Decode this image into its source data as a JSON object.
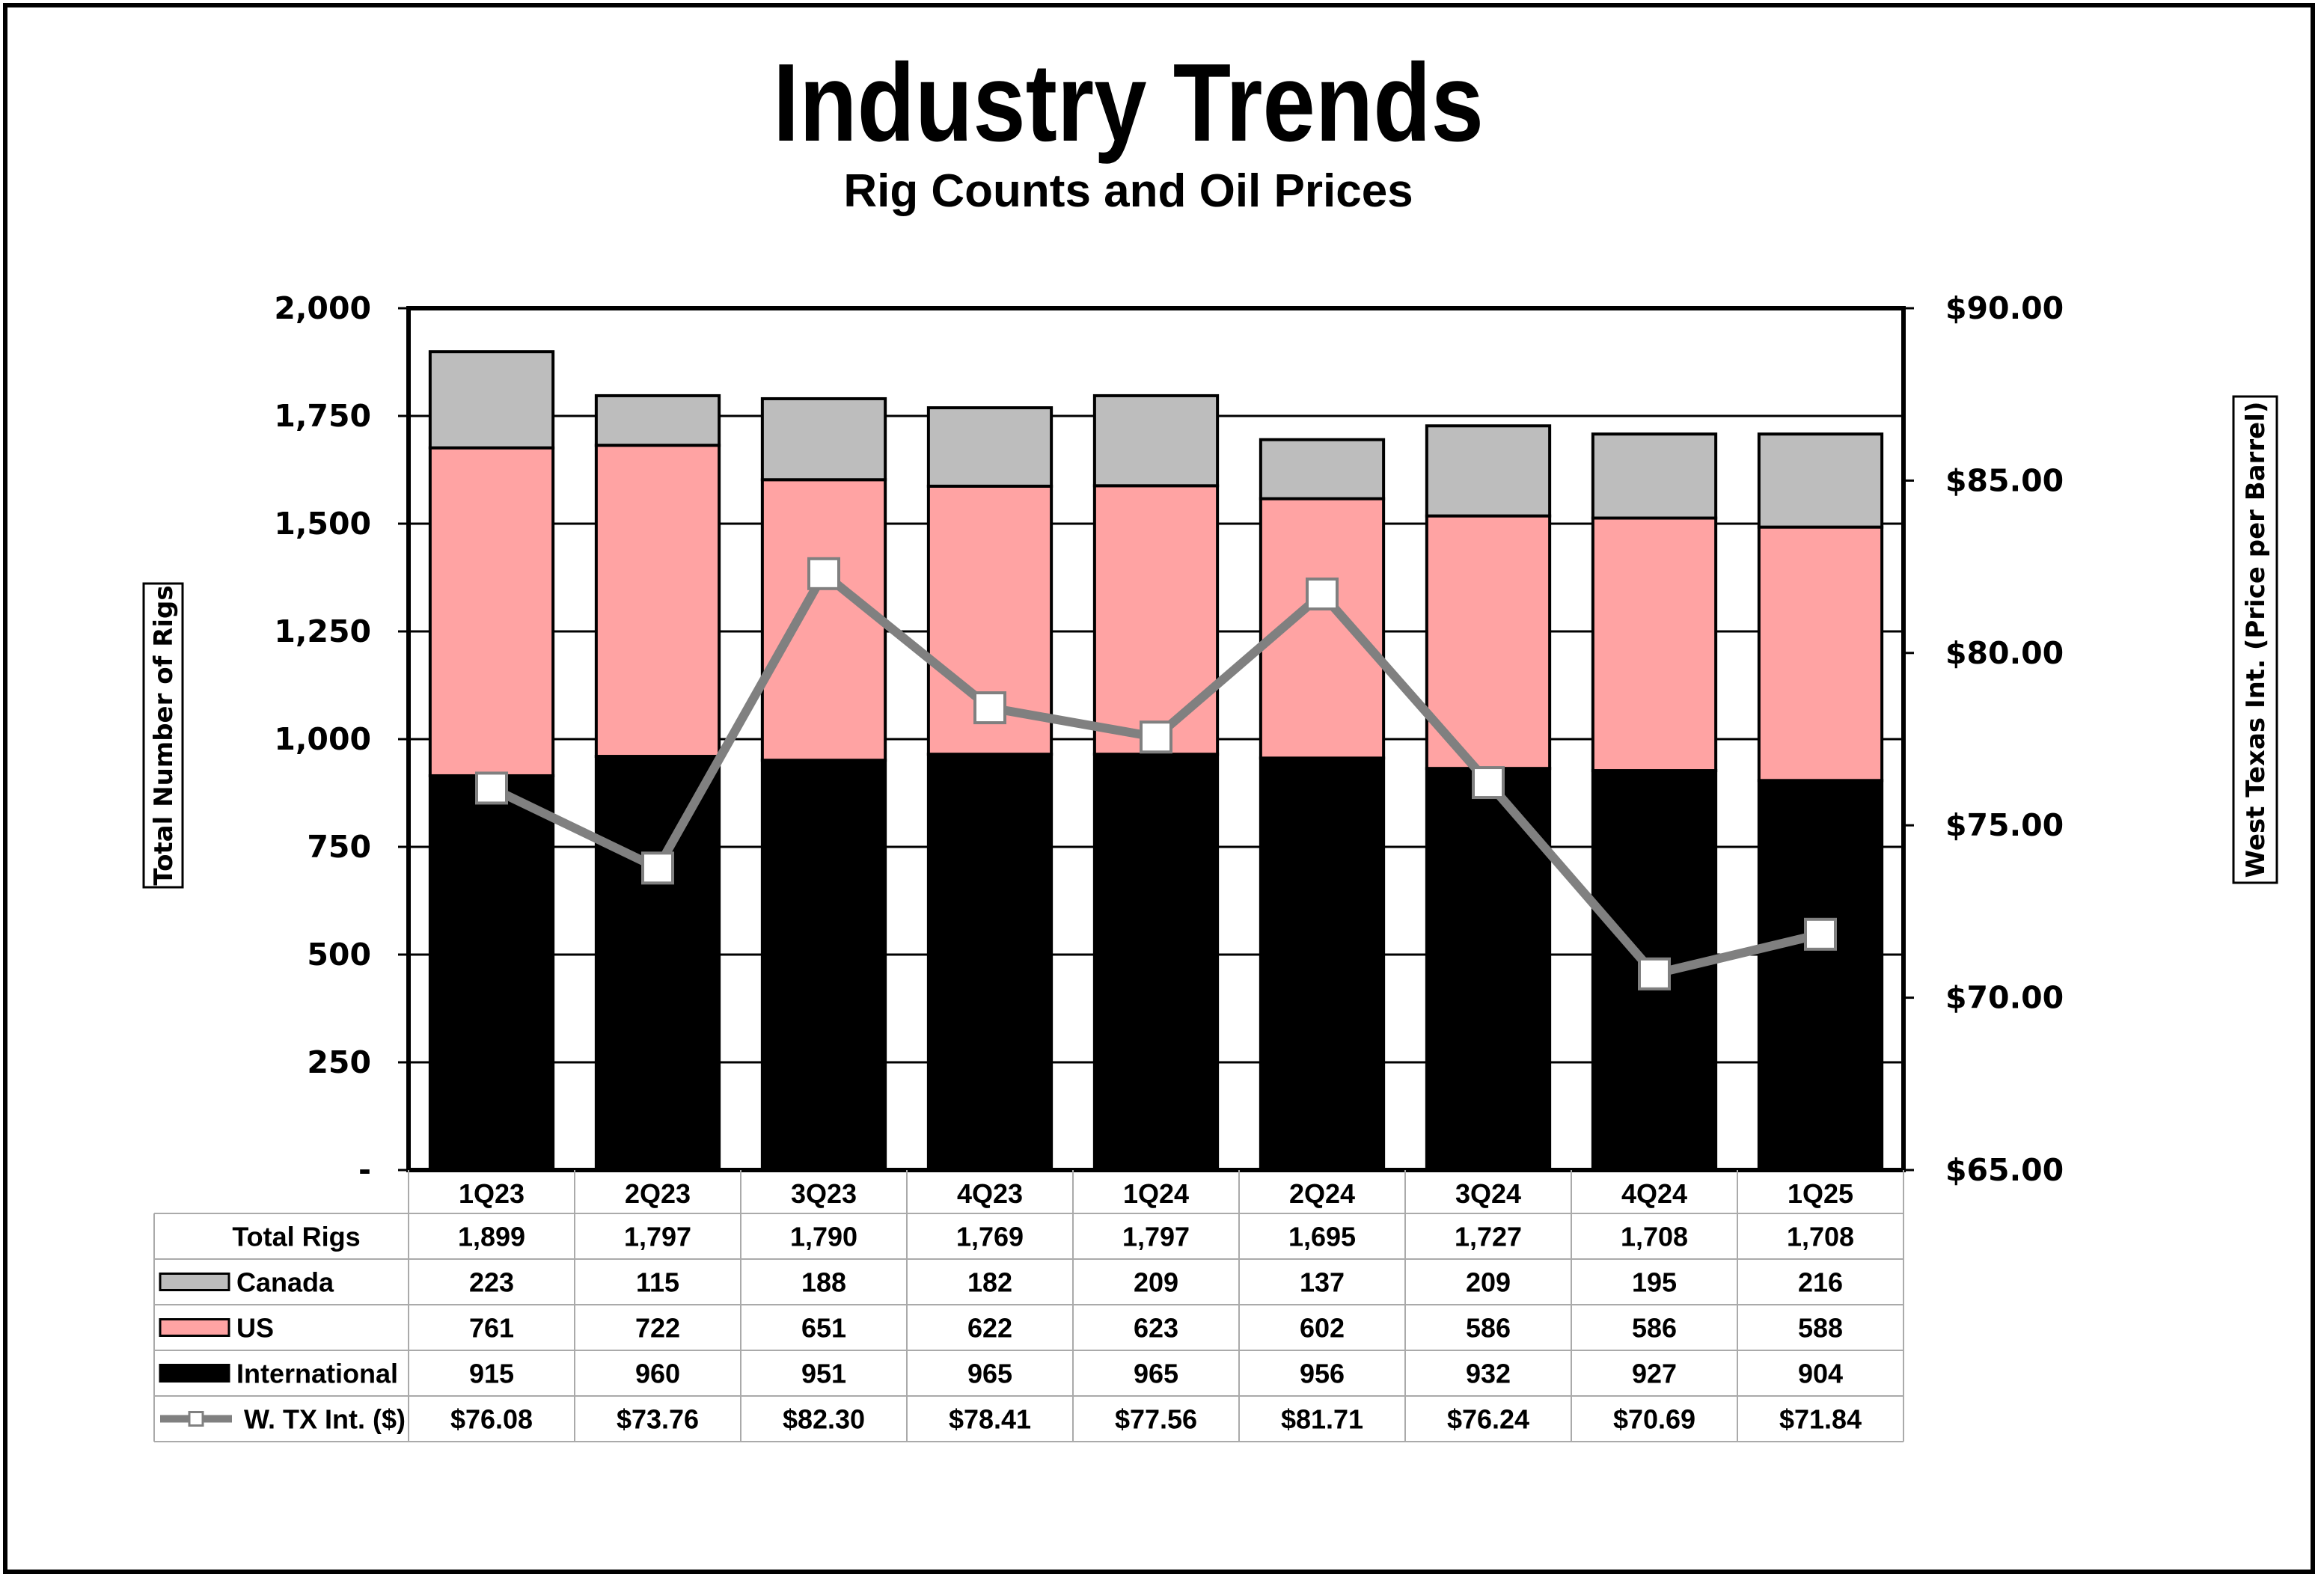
{
  "title": "Industry Trends",
  "subtitle": "Rig Counts and Oil Prices",
  "chart_data": {
    "type": "bar",
    "stacked": true,
    "title": "Industry Trends",
    "subtitle": "Rig Counts and Oil Prices",
    "categories": [
      "1Q23",
      "2Q23",
      "3Q23",
      "4Q23",
      "1Q24",
      "2Q24",
      "3Q24",
      "4Q24",
      "1Q25"
    ],
    "series": [
      {
        "name": "International",
        "values": [
          915,
          960,
          951,
          965,
          965,
          956,
          932,
          927,
          904
        ],
        "color": "#000000"
      },
      {
        "name": "US",
        "values": [
          761,
          722,
          651,
          622,
          623,
          602,
          586,
          586,
          588
        ],
        "color": "#ffa3a3"
      },
      {
        "name": "Canada",
        "values": [
          223,
          115,
          188,
          182,
          209,
          137,
          209,
          195,
          216
        ],
        "color": "#bdbdbd"
      }
    ],
    "line_series": {
      "name": "W. TX Int. ($)",
      "values": [
        76.08,
        73.76,
        82.3,
        78.41,
        77.56,
        81.71,
        76.24,
        70.69,
        71.84
      ],
      "labels": [
        "$76.08",
        "$73.76",
        "$82.30",
        "$78.41",
        "$77.56",
        "$81.71",
        "$76.24",
        "$70.69",
        "$71.84"
      ],
      "color": "#808080",
      "axis": "right"
    },
    "ylabel": "Total Number of Rigs",
    "ylabel_right": "West Texas Int. (Price per Barrel)",
    "ylim": [
      0,
      2000
    ],
    "ylim_right": [
      65,
      90
    ],
    "yticks": [
      0,
      250,
      500,
      750,
      1000,
      1250,
      1500,
      1750,
      2000
    ],
    "ytick_labels": [
      "-",
      "250",
      "500",
      "750",
      "1,000",
      "1,250",
      "1,500",
      "1,750",
      "2,000"
    ],
    "yticks_right": [
      65,
      70,
      75,
      80,
      85,
      90
    ],
    "ytick_labels_right": [
      "$65.00",
      "$70.00",
      "$75.00",
      "$80.00",
      "$85.00",
      "$90.00"
    ],
    "grid": true,
    "data_table": {
      "rows": [
        {
          "label": "Total Rigs",
          "key": null,
          "cells": [
            "1,899",
            "1,797",
            "1,790",
            "1,769",
            "1,797",
            "1,695",
            "1,727",
            "1,708",
            "1,708"
          ]
        },
        {
          "label": "Canada",
          "key": "canada",
          "cells": [
            "223",
            "115",
            "188",
            "182",
            "209",
            "137",
            "209",
            "195",
            "216"
          ]
        },
        {
          "label": "US",
          "key": "us",
          "cells": [
            "761",
            "722",
            "651",
            "622",
            "623",
            "602",
            "586",
            "586",
            "588"
          ]
        },
        {
          "label": "International",
          "key": "international",
          "cells": [
            "915",
            "960",
            "951",
            "965",
            "965",
            "956",
            "932",
            "927",
            "904"
          ]
        },
        {
          "label": "W. TX Int. ($)",
          "key": "wti",
          "cells": [
            "$76.08",
            "$73.76",
            "$82.30",
            "$78.41",
            "$77.56",
            "$81.71",
            "$76.24",
            "$70.69",
            "$71.84"
          ]
        }
      ]
    }
  }
}
